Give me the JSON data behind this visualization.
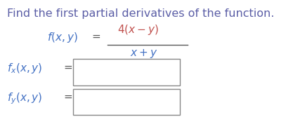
{
  "title": "Find the first partial derivatives of the function.",
  "title_color": "#5b5ea6",
  "title_fontsize": 11.5,
  "italic_color": "#c0504d",
  "label_color": "#4472c4",
  "dark_color": "#595959",
  "bg_color": "#ffffff",
  "fig_width": 4.07,
  "fig_height": 1.67,
  "dpi": 100
}
